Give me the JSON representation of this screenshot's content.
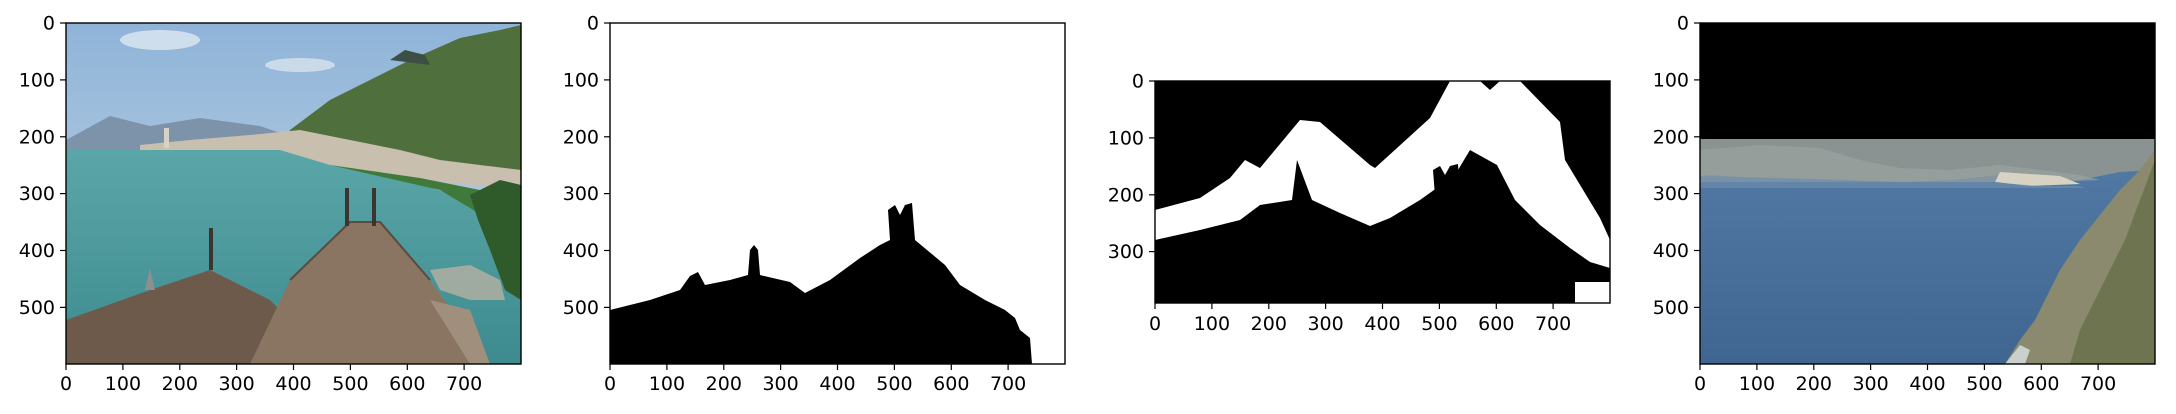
{
  "figure": {
    "panels": [
      {
        "id": "panel-1",
        "kind": "photo",
        "content": "lakeside-town",
        "x_ticks": [
          "0",
          "100",
          "200",
          "300",
          "400",
          "500",
          "600",
          "700"
        ],
        "y_ticks": [
          "0",
          "100",
          "200",
          "300",
          "400",
          "500"
        ]
      },
      {
        "id": "panel-2",
        "kind": "mask",
        "content": "roof-silhouette-mask",
        "x_ticks": [
          "0",
          "100",
          "200",
          "300",
          "400",
          "500",
          "600",
          "700"
        ],
        "y_ticks": [
          "0",
          "100",
          "200",
          "300",
          "400",
          "500"
        ]
      },
      {
        "id": "panel-3",
        "kind": "mask",
        "content": "dilated-edge-mask",
        "x_ticks": [
          "0",
          "100",
          "200",
          "300",
          "400",
          "500",
          "600",
          "700"
        ],
        "y_ticks": [
          "0",
          "100",
          "200",
          "300"
        ]
      },
      {
        "id": "panel-4",
        "kind": "photo",
        "content": "coastal-bay-with-black-top-band",
        "x_ticks": [
          "0",
          "100",
          "200",
          "300",
          "400",
          "500",
          "600",
          "700"
        ],
        "y_ticks": [
          "0",
          "100",
          "200",
          "300",
          "400",
          "500"
        ]
      }
    ],
    "colors": {
      "sky": "#a9c4dd",
      "water": "#5aa6a8",
      "roof": "#7b6656",
      "hills": "#4f6f3d",
      "mask_black": "#000000",
      "mask_white": "#ffffff",
      "sea": "#4d78a3"
    }
  }
}
